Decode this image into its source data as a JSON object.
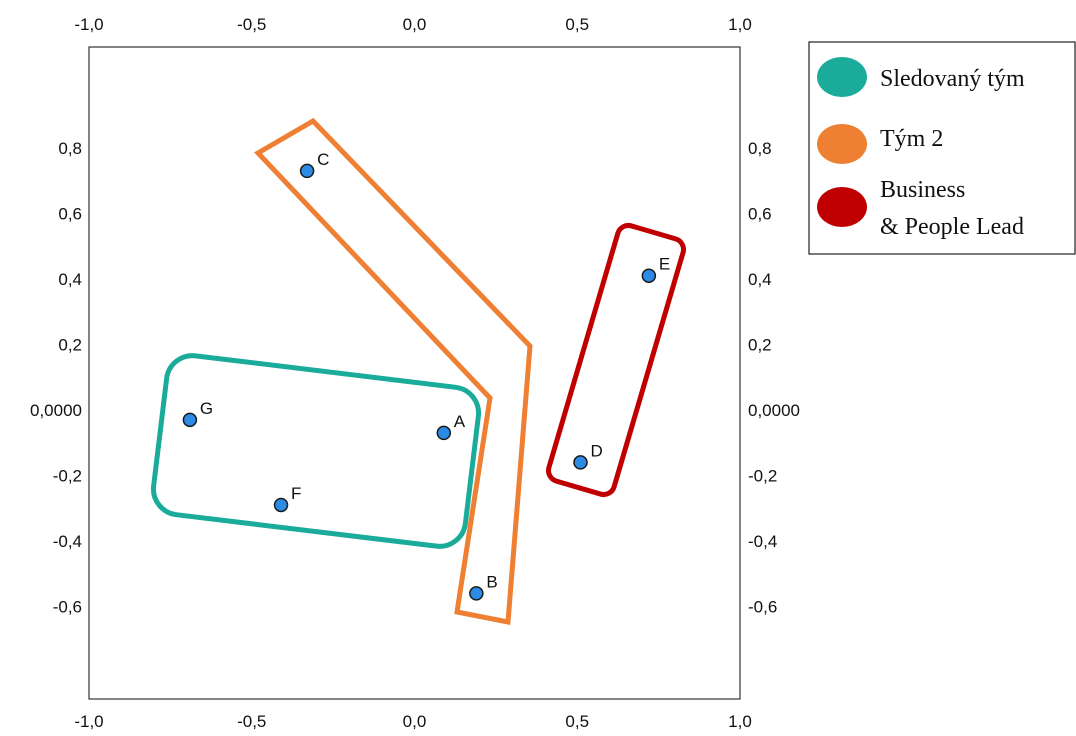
{
  "chart_data": {
    "type": "scatter",
    "xlim": [
      -1.0,
      1.0
    ],
    "ylim": [
      -0.9,
      1.0
    ],
    "grid": false,
    "x_ticks": [
      {
        "value": -1.0,
        "label": "-1,0"
      },
      {
        "value": -0.5,
        "label": "-0,5"
      },
      {
        "value": 0.0,
        "label": "0,0"
      },
      {
        "value": 0.5,
        "label": "0,5"
      },
      {
        "value": 1.0,
        "label": "1,0"
      }
    ],
    "y_ticks": [
      {
        "value": 0.8,
        "label": "0,8"
      },
      {
        "value": 0.6,
        "label": "0,6"
      },
      {
        "value": 0.4,
        "label": "0,4"
      },
      {
        "value": 0.2,
        "label": "0,2"
      },
      {
        "value": 0.0,
        "label": "0,0000"
      },
      {
        "value": -0.2,
        "label": "-0,2"
      },
      {
        "value": -0.4,
        "label": "-0,4"
      },
      {
        "value": -0.6,
        "label": "-0,6"
      }
    ],
    "points": [
      {
        "label": "A",
        "x": 0.09,
        "y": -0.07
      },
      {
        "label": "B",
        "x": 0.19,
        "y": -0.56
      },
      {
        "label": "C",
        "x": -0.33,
        "y": 0.73
      },
      {
        "label": "D",
        "x": 0.51,
        "y": -0.16
      },
      {
        "label": "E",
        "x": 0.72,
        "y": 0.41
      },
      {
        "label": "F",
        "x": -0.41,
        "y": -0.29
      },
      {
        "label": "G",
        "x": -0.69,
        "y": -0.03
      }
    ],
    "point_color": "#2b8be6",
    "groups": [
      {
        "name": "Sledovaný tým",
        "color": "#1aab9a",
        "members": [
          "A",
          "F",
          "G"
        ]
      },
      {
        "name": "Tým 2",
        "color": "#ee7f33",
        "members": [
          "B",
          "C"
        ]
      },
      {
        "name": "Business & People Lead",
        "color": "#c00000",
        "members": [
          "D",
          "E"
        ]
      }
    ],
    "legend_position": "right",
    "legend": [
      {
        "lines": [
          "Sledovaný tým"
        ],
        "color": "#1aab9a"
      },
      {
        "lines": [
          "Tým 2"
        ],
        "color": "#ee7f33"
      },
      {
        "lines": [
          "Business",
          "& People Lead"
        ],
        "color": "#c00000"
      }
    ]
  }
}
